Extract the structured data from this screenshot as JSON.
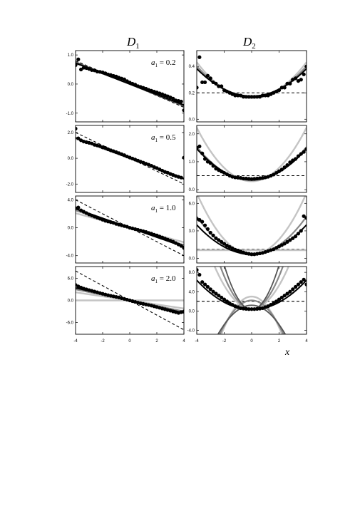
{
  "figure": {
    "col_titles": [
      {
        "base": "D",
        "sub": "1"
      },
      {
        "base": "D",
        "sub": "2"
      }
    ],
    "xlabel": "x"
  },
  "chart_data": [
    {
      "type": "line",
      "column": "D1",
      "annotation": {
        "var": "a",
        "sub": "1",
        "text": " = 0.2"
      },
      "xlim": [
        -4,
        4
      ],
      "ylim": [
        -1.3,
        1.15
      ],
      "yticks": [
        1.0,
        0.0,
        -1.0
      ],
      "yticklabels": [
        "1.0",
        "0.0",
        "-1.0"
      ],
      "x_points": [
        -4,
        -3.8,
        -3.6,
        -3.4,
        -3.2,
        -3,
        -2.8,
        -2.6,
        -2.4,
        -2.2,
        -2,
        -1.8,
        -1.6,
        -1.4,
        -1.2,
        -1,
        -0.8,
        -0.6,
        -0.4,
        -0.2,
        0,
        0.2,
        0.4,
        0.6,
        0.8,
        1,
        1.2,
        1.4,
        1.6,
        1.8,
        2,
        2.2,
        2.4,
        2.6,
        2.8,
        3,
        3.2,
        3.4,
        3.6,
        3.8,
        4
      ],
      "y_points": [
        0.65,
        0.85,
        0.5,
        0.56,
        0.55,
        0.52,
        0.48,
        0.47,
        0.43,
        0.42,
        0.4,
        0.37,
        0.33,
        0.31,
        0.28,
        0.26,
        0.22,
        0.19,
        0.16,
        0.1,
        0.05,
        0.01,
        -0.02,
        -0.07,
        -0.1,
        -0.13,
        -0.16,
        -0.2,
        -0.23,
        -0.26,
        -0.29,
        -0.32,
        -0.35,
        -0.39,
        -0.42,
        -0.46,
        -0.5,
        -0.56,
        -0.58,
        -0.6,
        -0.9
      ],
      "series": [
        {
          "style": "dashed-black",
          "coef": [
            0,
            -0.2
          ]
        },
        {
          "style": "gray",
          "coef": [
            0,
            -0.185
          ]
        },
        {
          "style": "dimgray",
          "coef": [
            0,
            -0.19
          ]
        },
        {
          "style": "black",
          "coef": [
            0,
            -0.18
          ]
        }
      ]
    },
    {
      "type": "line",
      "column": "D2",
      "xlim": [
        -4,
        4
      ],
      "ylim": [
        -0.02,
        0.52
      ],
      "yticks": [
        0.4,
        0.2,
        0.0
      ],
      "yticklabels": [
        "0.4",
        "0.2",
        "0.0"
      ],
      "x_points": [
        -4,
        -3.8,
        -3.6,
        -3.4,
        -3.2,
        -3,
        -2.8,
        -2.6,
        -2.4,
        -2.2,
        -2,
        -1.8,
        -1.6,
        -1.4,
        -1.2,
        -1,
        -0.8,
        -0.6,
        -0.4,
        -0.2,
        0,
        0.2,
        0.4,
        0.6,
        0.8,
        1,
        1.2,
        1.4,
        1.6,
        1.8,
        2,
        2.2,
        2.4,
        2.6,
        2.8,
        3,
        3.2,
        3.4,
        3.6,
        3.8,
        4
      ],
      "y_points": [
        0.24,
        0.47,
        0.28,
        0.28,
        0.33,
        0.31,
        0.28,
        0.27,
        0.25,
        0.25,
        0.22,
        0.21,
        0.2,
        0.19,
        0.18,
        0.18,
        0.18,
        0.17,
        0.17,
        0.17,
        0.17,
        0.17,
        0.17,
        0.17,
        0.18,
        0.18,
        0.18,
        0.19,
        0.2,
        0.21,
        0.22,
        0.24,
        0.24,
        0.27,
        0.27,
        0.3,
        0.31,
        0.29,
        0.3,
        0.34,
        0.4
      ],
      "series": [
        {
          "style": "dashed-black",
          "coef": [
            0.2
          ]
        },
        {
          "style": "lightgray",
          "coef": [
            0.16,
            0,
            0.017
          ]
        },
        {
          "style": "gray",
          "coef": [
            0.17,
            0,
            0.0145
          ]
        },
        {
          "style": "black",
          "coef": [
            0.175,
            0,
            0.013
          ]
        }
      ]
    },
    {
      "type": "line",
      "column": "D1",
      "annotation": {
        "var": "a",
        "sub": "1",
        "text": " = 0.5"
      },
      "xlim": [
        -4,
        4
      ],
      "ylim": [
        -2.65,
        2.55
      ],
      "yticks": [
        2.0,
        0.0,
        -2.0
      ],
      "yticklabels": [
        "2.0",
        "0.0",
        "-2.0"
      ],
      "x_points": [
        -4,
        -3.8,
        -3.6,
        -3.4,
        -3.2,
        -3,
        -2.8,
        -2.6,
        -2.4,
        -2.2,
        -2,
        -1.8,
        -1.6,
        -1.4,
        -1.2,
        -1,
        -0.8,
        -0.6,
        -0.4,
        -0.2,
        0,
        0.2,
        0.4,
        0.6,
        0.8,
        1,
        1.2,
        1.4,
        1.6,
        1.8,
        2,
        2.2,
        2.4,
        2.6,
        2.8,
        3,
        3.2,
        3.4,
        3.6,
        3.8,
        4
      ],
      "y_points": [
        2.3,
        1.55,
        1.4,
        1.3,
        1.25,
        1.2,
        1.15,
        1.05,
        1.0,
        0.95,
        0.85,
        0.8,
        0.7,
        0.62,
        0.55,
        0.48,
        0.4,
        0.32,
        0.24,
        0.14,
        0.06,
        -0.02,
        -0.1,
        -0.18,
        -0.26,
        -0.34,
        -0.42,
        -0.5,
        -0.58,
        -0.68,
        -0.76,
        -0.86,
        -0.96,
        -1.06,
        -1.12,
        -1.22,
        -1.3,
        -1.38,
        -1.44,
        -1.5,
        0.05
      ],
      "series": [
        {
          "style": "dashed-black",
          "coef": [
            0,
            -0.5
          ]
        },
        {
          "style": "lightgray",
          "coef": [
            0,
            -0.38
          ]
        },
        {
          "style": "gray",
          "coef": [
            0,
            -0.39
          ]
        },
        {
          "style": "black",
          "coef": [
            0,
            -0.4
          ]
        }
      ]
    },
    {
      "type": "line",
      "column": "D2",
      "xlim": [
        -4,
        4
      ],
      "ylim": [
        -0.1,
        2.3
      ],
      "yticks": [
        2.0,
        1.0,
        0.0
      ],
      "yticklabels": [
        "2.0",
        "1.0",
        "0.0"
      ],
      "x_points": [
        -4,
        -3.8,
        -3.6,
        -3.4,
        -3.2,
        -3,
        -2.8,
        -2.6,
        -2.4,
        -2.2,
        -2,
        -1.8,
        -1.6,
        -1.4,
        -1.2,
        -1,
        -0.8,
        -0.6,
        -0.4,
        -0.2,
        0,
        0.2,
        0.4,
        0.6,
        0.8,
        1,
        1.2,
        1.4,
        1.6,
        1.8,
        2,
        2.2,
        2.4,
        2.6,
        2.8,
        3,
        3.2,
        3.4,
        3.6,
        3.8,
        4
      ],
      "y_points": [
        1.5,
        1.55,
        1.3,
        1.1,
        1.0,
        0.95,
        0.85,
        0.75,
        0.7,
        0.65,
        0.6,
        0.55,
        0.5,
        0.46,
        0.44,
        0.43,
        0.42,
        0.4,
        0.4,
        0.39,
        0.38,
        0.39,
        0.4,
        0.41,
        0.42,
        0.44,
        0.46,
        0.5,
        0.54,
        0.6,
        0.66,
        0.72,
        0.8,
        0.88,
        0.98,
        1.05,
        1.1,
        1.2,
        1.28,
        1.35,
        1.45
      ],
      "series": [
        {
          "style": "dashed-black",
          "coef": [
            0.5
          ]
        },
        {
          "style": "lightgray",
          "coef": [
            0.3,
            0,
            0.12
          ]
        },
        {
          "style": "gray",
          "coef": [
            0.33,
            0,
            0.075
          ]
        },
        {
          "style": "black",
          "coef": [
            0.35,
            0,
            0.07
          ]
        }
      ]
    },
    {
      "type": "line",
      "column": "D1",
      "annotation": {
        "var": "a",
        "sub": "1",
        "text": " = 1.0"
      },
      "xlim": [
        -4,
        4
      ],
      "ylim": [
        -5.05,
        4.55
      ],
      "yticks": [
        4.0,
        0.0,
        -4.0
      ],
      "yticklabels": [
        "4.0",
        "0.0",
        "-4.0"
      ],
      "x_points": [
        -4,
        -3.8,
        -3.6,
        -3.4,
        -3.2,
        -3,
        -2.8,
        -2.6,
        -2.4,
        -2.2,
        -2,
        -1.8,
        -1.6,
        -1.4,
        -1.2,
        -1,
        -0.8,
        -0.6,
        -0.4,
        -0.2,
        0,
        0.2,
        0.4,
        0.6,
        0.8,
        1,
        1.2,
        1.4,
        1.6,
        1.8,
        2,
        2.2,
        2.4,
        2.6,
        2.8,
        3,
        3.2,
        3.4,
        3.6,
        3.8,
        4
      ],
      "y_points": [
        2.8,
        2.9,
        2.5,
        2.3,
        2.1,
        1.9,
        1.75,
        1.6,
        1.45,
        1.3,
        1.15,
        1.0,
        0.9,
        0.8,
        0.7,
        0.55,
        0.45,
        0.35,
        0.25,
        0.15,
        0.0,
        -0.1,
        -0.2,
        -0.3,
        -0.4,
        -0.5,
        -0.6,
        -0.75,
        -0.85,
        -1.0,
        -1.1,
        -1.25,
        -1.4,
        -1.55,
        -1.7,
        -1.85,
        -2.0,
        -2.2,
        -2.4,
        -2.6,
        -2.9
      ],
      "series": [
        {
          "style": "dashed-black",
          "coef": [
            0,
            -1.0
          ]
        },
        {
          "style": "lightgray",
          "coef": [
            0,
            -0.52
          ]
        },
        {
          "style": "gray",
          "coef": [
            0,
            -0.62
          ]
        },
        {
          "style": "black",
          "coef": [
            0,
            -0.68
          ]
        }
      ]
    },
    {
      "type": "line",
      "column": "D2",
      "xlim": [
        -4,
        4
      ],
      "ylim": [
        -0.5,
        6.8
      ],
      "yticks": [
        6.0,
        3.0,
        0.0
      ],
      "yticklabels": [
        "6.0",
        "3.0",
        "0.0"
      ],
      "x_points": [
        -4,
        -3.8,
        -3.6,
        -3.4,
        -3.2,
        -3,
        -2.8,
        -2.6,
        -2.4,
        -2.2,
        -2,
        -1.8,
        -1.6,
        -1.4,
        -1.2,
        -1,
        -0.8,
        -0.6,
        -0.4,
        -0.2,
        0,
        0.2,
        0.4,
        0.6,
        0.8,
        1,
        1.2,
        1.4,
        1.6,
        1.8,
        2,
        2.2,
        2.4,
        2.6,
        2.8,
        3,
        3.2,
        3.4,
        3.6,
        3.8,
        4
      ],
      "y_points": [
        4.3,
        4.2,
        4.0,
        3.6,
        3.2,
        2.8,
        2.5,
        2.2,
        2.0,
        1.8,
        1.6,
        1.4,
        1.25,
        1.1,
        0.95,
        0.85,
        0.75,
        0.65,
        0.55,
        0.5,
        0.45,
        0.45,
        0.5,
        0.55,
        0.6,
        0.7,
        0.8,
        0.9,
        1.0,
        1.15,
        1.3,
        1.45,
        1.6,
        1.8,
        2.0,
        2.2,
        2.4,
        2.7,
        3.0,
        4.6,
        4.4
      ],
      "series": [
        {
          "style": "dashed-black",
          "coef": [
            1.0
          ]
        },
        {
          "style": "lightgray-flat",
          "coef": [
            0.9
          ]
        },
        {
          "style": "lightgray",
          "coef": [
            0.4,
            0,
            0.42
          ]
        },
        {
          "style": "gray",
          "coef": [
            0.4,
            0,
            0.26
          ]
        },
        {
          "style": "black",
          "coef": [
            0.45,
            0,
            0.2
          ]
        }
      ]
    },
    {
      "type": "line",
      "column": "D1",
      "annotation": {
        "var": "a",
        "sub": "1",
        "text": " = 2.0"
      },
      "xlim": [
        -4,
        4
      ],
      "ylim": [
        -9.2,
        9.2
      ],
      "yticks": [
        6.0,
        0.0,
        -6.0
      ],
      "yticklabels": [
        "6.0",
        "0.0",
        "-6.0"
      ],
      "x_points": [
        -4,
        -3.8,
        -3.6,
        -3.4,
        -3.2,
        -3,
        -2.8,
        -2.6,
        -2.4,
        -2.2,
        -2,
        -1.8,
        -1.6,
        -1.4,
        -1.2,
        -1,
        -0.8,
        -0.6,
        -0.4,
        -0.2,
        0,
        0.2,
        0.4,
        0.6,
        0.8,
        1,
        1.2,
        1.4,
        1.6,
        1.8,
        2,
        2.2,
        2.4,
        2.6,
        2.8,
        3,
        3.2,
        3.4,
        3.6,
        3.8,
        4
      ],
      "y_points": [
        4.2,
        3.8,
        3.5,
        3.2,
        3.0,
        2.8,
        2.6,
        2.4,
        2.2,
        2.0,
        1.8,
        1.6,
        1.4,
        1.25,
        1.1,
        0.95,
        0.8,
        0.6,
        0.4,
        0.2,
        0.0,
        -0.2,
        -0.4,
        -0.6,
        -0.8,
        -0.95,
        -1.1,
        -1.25,
        -1.4,
        -1.6,
        -1.8,
        -2.0,
        -2.2,
        -2.4,
        -2.6,
        -2.8,
        -3.0,
        -3.2,
        -3.4,
        -3.2,
        -3.0
      ],
      "series": [
        {
          "style": "dashed-black",
          "coef": [
            0,
            -2.0
          ]
        },
        {
          "style": "lightgray-flat",
          "coef": [
            0,
            0
          ]
        },
        {
          "style": "lightgray",
          "coef": [
            0,
            -0.55
          ]
        },
        {
          "style": "gray",
          "coef": [
            0,
            -0.75
          ]
        },
        {
          "style": "black",
          "coef": [
            0,
            -0.85
          ]
        }
      ]
    },
    {
      "type": "line",
      "column": "D2",
      "xlim": [
        -4,
        4
      ],
      "ylim": [
        -4.8,
        9.2
      ],
      "yticks": [
        8.0,
        4.0,
        0.0,
        -4.0
      ],
      "yticklabels": [
        "8.0",
        "4.0",
        "0.0",
        "-4.0"
      ],
      "x_points": [
        -4,
        -3.8,
        -3.6,
        -3.4,
        -3.2,
        -3,
        -2.8,
        -2.6,
        -2.4,
        -2.2,
        -2,
        -1.8,
        -1.6,
        -1.4,
        -1.2,
        -1,
        -0.8,
        -0.6,
        -0.4,
        -0.2,
        0,
        0.2,
        0.4,
        0.6,
        0.8,
        1,
        1.2,
        1.4,
        1.6,
        1.8,
        2,
        2.2,
        2.4,
        2.6,
        2.8,
        3,
        3.2,
        3.4,
        3.6,
        3.8,
        4
      ],
      "y_points": [
        8.5,
        7.5,
        6.0,
        5.5,
        5.0,
        4.5,
        4.0,
        3.6,
        3.2,
        2.8,
        2.4,
        2.0,
        1.6,
        1.3,
        1.0,
        0.8,
        0.6,
        0.5,
        0.45,
        0.4,
        0.4,
        0.4,
        0.45,
        0.5,
        0.6,
        0.8,
        1.0,
        1.3,
        1.6,
        2.0,
        2.4,
        2.8,
        3.2,
        3.6,
        4.0,
        4.5,
        5.0,
        5.5,
        6.0,
        6.5,
        5.5
      ],
      "series": [
        {
          "style": "dashed-black",
          "coef": [
            2.0
          ]
        },
        {
          "style": "lightgray",
          "coef": [
            0.5,
            0,
            1.2
          ]
        },
        {
          "style": "lightgray",
          "coef": [
            3.0,
            0,
            -1.6
          ]
        },
        {
          "style": "gray",
          "coef": [
            0.4,
            0,
            1.7
          ]
        },
        {
          "style": "gray",
          "coef": [
            2.2,
            0,
            -1.3
          ]
        },
        {
          "style": "dimgray",
          "coef": [
            0.3,
            0,
            2.3
          ]
        },
        {
          "style": "dimgray",
          "coef": [
            1.2,
            0,
            -1.0
          ]
        },
        {
          "style": "black",
          "coef": [
            0.3,
            0,
            0.38
          ]
        }
      ]
    }
  ],
  "xaxis": {
    "ticks": [
      -4,
      -2,
      0,
      2,
      4
    ],
    "ticklabels": [
      "-4",
      "-2",
      "0",
      "2",
      "4"
    ]
  }
}
